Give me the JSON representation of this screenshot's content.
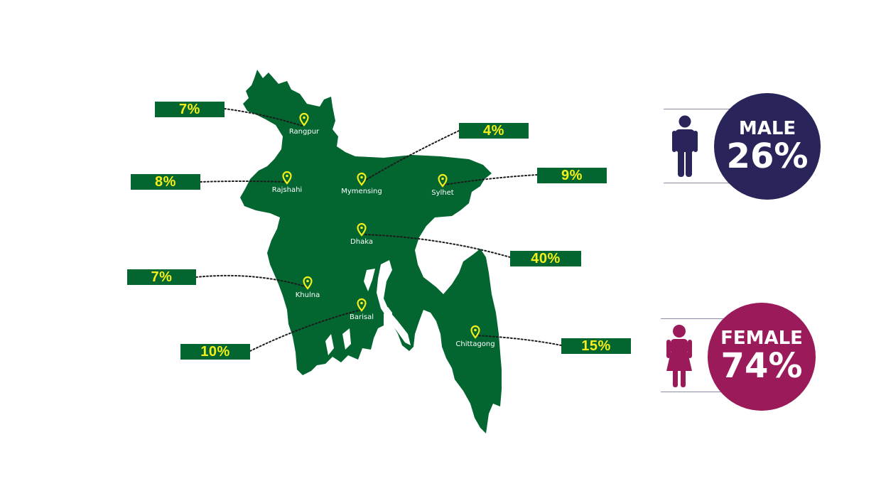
{
  "colors": {
    "map_fill": "#036630",
    "pin": "#f4ef1a",
    "tag_bg": "#036630",
    "tag_text": "#f4ef1a",
    "male": "#29245a",
    "female": "#9b1a5a"
  },
  "regions": [
    {
      "id": "rangpur",
      "name": "Rangpur",
      "percent": "7%"
    },
    {
      "id": "rajshahi",
      "name": "Rajshahi",
      "percent": "8%"
    },
    {
      "id": "mymensing",
      "name": "Mymensing",
      "percent": "4%"
    },
    {
      "id": "sylhet",
      "name": "Sylhet",
      "percent": "9%"
    },
    {
      "id": "dhaka",
      "name": "Dhaka",
      "percent": "40%"
    },
    {
      "id": "khulna",
      "name": "Khulna",
      "percent": "7%"
    },
    {
      "id": "barisal",
      "name": "Barisal",
      "percent": "10%"
    },
    {
      "id": "chittagong",
      "name": "Chittagong",
      "percent": "15%"
    }
  ],
  "gender": {
    "male": {
      "label": "MALE",
      "percent": "26%"
    },
    "female": {
      "label": "FEMALE",
      "percent": "74%"
    }
  }
}
